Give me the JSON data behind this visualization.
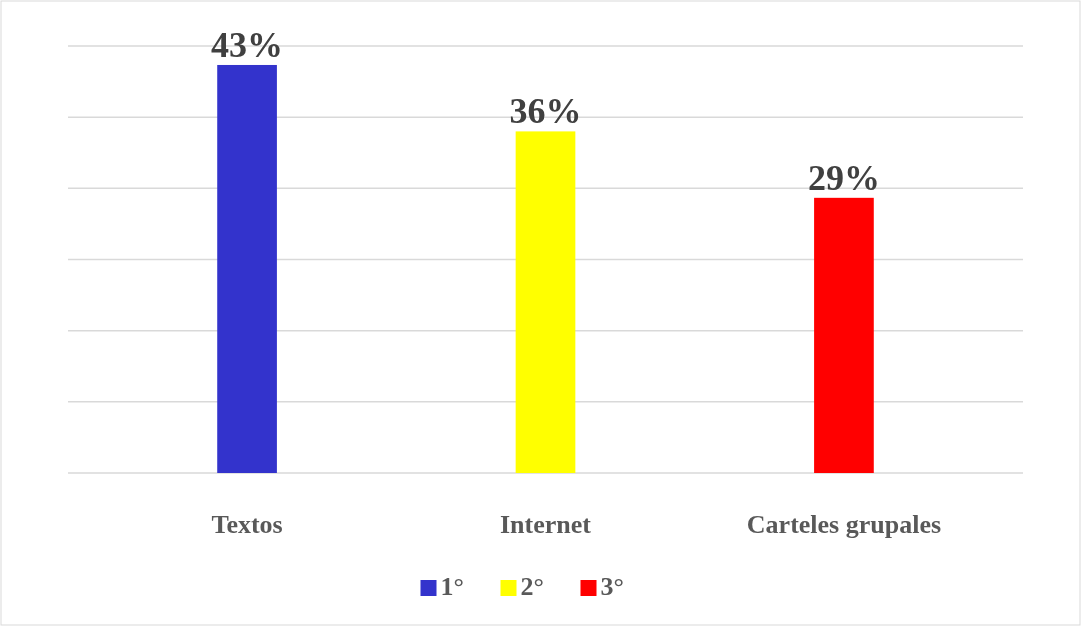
{
  "chart_data": {
    "type": "bar",
    "categories": [
      "Textos",
      "Internet",
      "Carteles grupales"
    ],
    "series": [
      {
        "name": "1°",
        "color": "#3333cc",
        "values": [
          43,
          null,
          null
        ],
        "value_labels": [
          "43%",
          null,
          null
        ]
      },
      {
        "name": "2°",
        "color": "#ffff00",
        "values": [
          null,
          36,
          null
        ],
        "value_labels": [
          null,
          "36%",
          null
        ]
      },
      {
        "name": "3°",
        "color": "#ff0000",
        "values": [
          null,
          null,
          29
        ],
        "value_labels": [
          null,
          null,
          "29%"
        ]
      }
    ],
    "ylim": [
      0,
      45
    ],
    "yticks": [
      {
        "value": 0,
        "label": null
      },
      {
        "value": 7.5,
        "label": null
      },
      {
        "value": 15,
        "label": null
      },
      {
        "value": 22.5,
        "label": null
      },
      {
        "value": 30,
        "label": null
      },
      {
        "value": 37.5,
        "label": null
      },
      {
        "value": 45,
        "label": null
      }
    ],
    "tick_labels": "x",
    "grid": "y",
    "legend": "bottom"
  }
}
